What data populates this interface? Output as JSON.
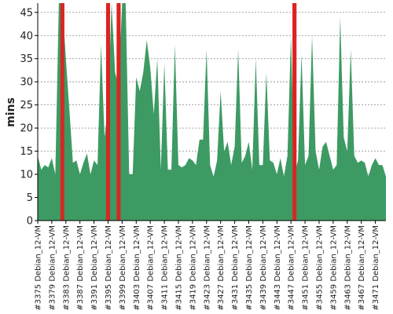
{
  "chart_data": {
    "type": "area",
    "title": "",
    "xlabel": "",
    "ylabel": "mins",
    "ylim": [
      0,
      47
    ],
    "yticks": [
      0,
      5,
      10,
      15,
      20,
      25,
      30,
      35,
      40,
      45
    ],
    "grid": true,
    "legend": "none",
    "colors": {
      "success": "#3d9a63",
      "failure": "#dd2222",
      "grid": "#888888",
      "axis": "#000000"
    },
    "x_tick_labels": [
      "#3375 Debian_12-VM",
      "#3379 Debian_12-VM",
      "#3383 Debian_12-VM",
      "#3387 Debian_12-VM",
      "#3391 Debian_12-VM",
      "#3395 Debian_12-VM",
      "#3399 Debian_12-VM",
      "#3403 Debian_12-VM",
      "#3407 Debian_12-VM",
      "#3411 Debian_12-VM",
      "#3415 Debian_12-VM",
      "#3419 Debian_12-VM",
      "#3423 Debian_12-VM",
      "#3427 Debian_12-VM",
      "#3431 Debian_12-VM",
      "#3435 Debian_12-VM",
      "#3439 Debian_12-VM",
      "#3443 Debian_12-VM",
      "#3447 Debian_12-VM",
      "#3451 Debian_12-VM",
      "#3455 Debian_12-VM",
      "#3459 Debian_12-VM",
      "#3463 Debian_12-VM",
      "#3467 Debian_12-VM",
      "#3471 Debian_12-VM"
    ],
    "series": [
      {
        "x": [
          3375,
          3376,
          3377,
          3378,
          3379,
          3380,
          3381,
          3382,
          3383,
          3384,
          3385,
          3386,
          3387,
          3388,
          3389,
          3390,
          3391,
          3392,
          3393,
          3394,
          3395,
          3396,
          3397,
          3398,
          3399,
          3400,
          3401,
          3402,
          3403,
          3404,
          3405,
          3406,
          3407,
          3408,
          3409,
          3410,
          3411,
          3412,
          3413,
          3414,
          3415,
          3416,
          3417,
          3418,
          3419,
          3420,
          3421,
          3422,
          3423,
          3424,
          3425,
          3426,
          3427,
          3428,
          3429,
          3430,
          3431,
          3432,
          3433,
          3434,
          3435,
          3436,
          3437,
          3438,
          3439,
          3440,
          3441,
          3442,
          3443,
          3444,
          3445,
          3446,
          3447,
          3448,
          3449,
          3450,
          3451,
          3452,
          3453,
          3454,
          3455,
          3456,
          3457,
          3458,
          3459,
          3460,
          3461,
          3462,
          3463,
          3464,
          3465,
          3466,
          3467,
          3468,
          3469,
          3470,
          3471,
          3472,
          3473,
          3474
        ],
        "y": [
          14,
          11,
          12,
          11.5,
          13.5,
          10,
          47,
          47,
          35,
          24,
          12.5,
          13,
          10,
          12.5,
          14.5,
          10,
          13,
          12,
          38,
          18,
          25,
          47,
          32,
          29,
          47,
          47,
          10,
          10,
          31,
          28,
          32,
          39,
          33,
          23,
          35,
          11,
          34,
          11,
          11,
          38,
          12,
          11.5,
          12,
          13.5,
          13,
          12,
          17.5,
          17.5,
          37,
          12,
          9.5,
          13,
          28,
          15,
          17,
          12,
          16,
          37,
          12.5,
          14,
          17,
          11,
          35,
          12,
          12,
          32,
          13,
          12.5,
          10,
          13.5,
          9.5,
          14,
          40,
          10,
          13,
          36,
          12,
          14,
          40,
          15,
          11,
          16,
          17,
          14,
          11,
          12,
          44,
          18,
          15,
          37,
          14,
          12.5,
          13,
          12.5,
          9.5,
          12,
          13.5,
          12,
          12,
          9.5
        ],
        "status": [
          "ok",
          "ok",
          "ok",
          "ok",
          "ok",
          "ok",
          "ok",
          "fail",
          "ok",
          "ok",
          "ok",
          "ok",
          "ok",
          "ok",
          "ok",
          "ok",
          "ok",
          "ok",
          "ok",
          "ok",
          "fail",
          "ok",
          "ok",
          "fail",
          "ok",
          "ok",
          "ok",
          "ok",
          "ok",
          "ok",
          "ok",
          "ok",
          "ok",
          "ok",
          "ok",
          "ok",
          "ok",
          "ok",
          "ok",
          "ok",
          "ok",
          "ok",
          "ok",
          "ok",
          "ok",
          "ok",
          "ok",
          "ok",
          "ok",
          "ok",
          "ok",
          "ok",
          "ok",
          "ok",
          "ok",
          "ok",
          "ok",
          "ok",
          "ok",
          "ok",
          "ok",
          "ok",
          "ok",
          "ok",
          "ok",
          "ok",
          "ok",
          "ok",
          "ok",
          "ok",
          "ok",
          "ok",
          "ok",
          "fail",
          "ok",
          "ok",
          "ok",
          "ok",
          "ok",
          "ok",
          "ok",
          "ok",
          "ok",
          "ok",
          "ok",
          "ok",
          "ok",
          "ok",
          "ok",
          "ok",
          "ok",
          "ok",
          "ok",
          "ok",
          "ok",
          "ok",
          "ok",
          "ok",
          "ok",
          "ok"
        ]
      }
    ]
  }
}
